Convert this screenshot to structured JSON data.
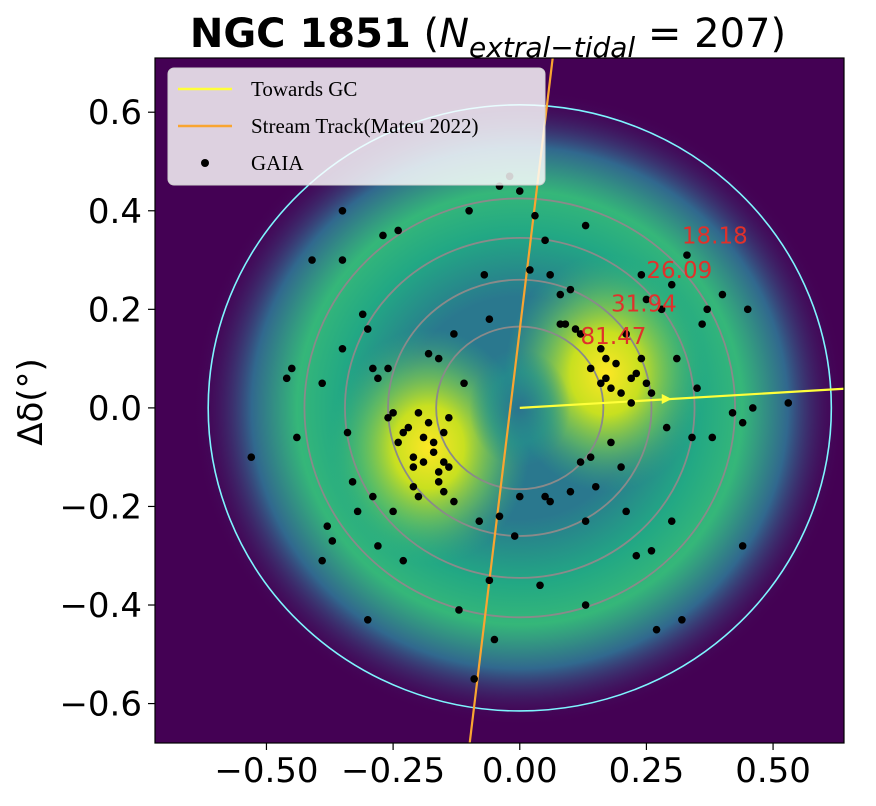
{
  "chart_data": {
    "type": "scatter",
    "title_main": "NGC 1851",
    "title_n_symbol": "N",
    "title_subscript": "extral−tidal",
    "title_equals": " = 207)",
    "title_open": " (",
    "ylabel": "Δδ(°)",
    "xlabel": "",
    "xlim": [
      -0.72,
      0.64
    ],
    "ylim": [
      -0.68,
      0.71
    ],
    "xticks": [
      -0.5,
      -0.25,
      0.0,
      0.25,
      0.5
    ],
    "xtick_labels": [
      "−0.50",
      "−0.25",
      "0.00",
      "0.25",
      "0.50"
    ],
    "yticks": [
      0.6,
      0.4,
      0.2,
      0.0,
      -0.2,
      -0.4,
      -0.6
    ],
    "ytick_labels": [
      "0.6",
      "0.4",
      "0.2",
      "0.0",
      "−0.2",
      "−0.4",
      "−0.6"
    ],
    "background": {
      "type": "density heatmap",
      "colormap": "viridis",
      "peaks": [
        [
          -0.18,
          -0.08
        ],
        [
          0.17,
          0.07
        ]
      ]
    },
    "contours": {
      "radii": [
        0.165,
        0.26,
        0.345,
        0.425
      ],
      "labels": [
        "81.47",
        "31.94",
        "26.09",
        "18.18"
      ],
      "label_positions": [
        [
          0.12,
          0.13
        ],
        [
          0.18,
          0.196
        ],
        [
          0.25,
          0.264
        ],
        [
          0.32,
          0.334
        ]
      ],
      "color": "#8a8a8a",
      "label_color": "#e0312b"
    },
    "tidal_circle": {
      "radius": 0.615,
      "color": "#7ff5ff"
    },
    "towards_gc": {
      "from": [
        0,
        0
      ],
      "to": [
        0.66,
        0.04
      ],
      "color": "#ffff3a"
    },
    "stream_track": {
      "from": [
        -0.1,
        -0.69
      ],
      "to": [
        0.065,
        0.71
      ],
      "color": "#f9a531"
    },
    "legend": {
      "position": "upper left",
      "entries": [
        {
          "label": "Towards GC",
          "marker": "line",
          "color": "#ffff3a"
        },
        {
          "label": "Stream Track(Mateu 2022)",
          "marker": "line",
          "color": "#f9a531"
        },
        {
          "label": "GAIA",
          "marker": "dot",
          "color": "#000000"
        }
      ]
    },
    "series": [
      {
        "name": "GAIA",
        "color": "#000000",
        "points": [
          [
            -0.53,
            -0.1
          ],
          [
            -0.46,
            0.06
          ],
          [
            -0.44,
            -0.06
          ],
          [
            -0.45,
            0.08
          ],
          [
            -0.41,
            0.3
          ],
          [
            -0.39,
            0.05
          ],
          [
            -0.39,
            -0.31
          ],
          [
            -0.38,
            -0.24
          ],
          [
            -0.37,
            -0.27
          ],
          [
            -0.35,
            0.3
          ],
          [
            -0.35,
            0.4
          ],
          [
            -0.35,
            0.12
          ],
          [
            -0.34,
            -0.05
          ],
          [
            -0.33,
            -0.15
          ],
          [
            -0.32,
            -0.21
          ],
          [
            -0.3,
            -0.43
          ],
          [
            -0.31,
            0.19
          ],
          [
            -0.3,
            0.16
          ],
          [
            -0.29,
            0.08
          ],
          [
            -0.29,
            -0.18
          ],
          [
            -0.28,
            0.06
          ],
          [
            -0.28,
            -0.28
          ],
          [
            -0.27,
            0.35
          ],
          [
            -0.26,
            0.08
          ],
          [
            -0.26,
            -0.02
          ],
          [
            -0.25,
            -0.01
          ],
          [
            -0.25,
            -0.21
          ],
          [
            -0.24,
            0.36
          ],
          [
            -0.24,
            -0.07
          ],
          [
            -0.23,
            -0.05
          ],
          [
            -0.23,
            -0.31
          ],
          [
            -0.22,
            -0.04
          ],
          [
            -0.21,
            -0.1
          ],
          [
            -0.21,
            -0.12
          ],
          [
            -0.21,
            -0.16
          ],
          [
            -0.2,
            -0.18
          ],
          [
            -0.2,
            -0.01
          ],
          [
            -0.19,
            -0.06
          ],
          [
            -0.19,
            -0.11
          ],
          [
            -0.18,
            0.11
          ],
          [
            -0.18,
            -0.03
          ],
          [
            -0.17,
            -0.07
          ],
          [
            -0.17,
            -0.09
          ],
          [
            -0.16,
            0.1
          ],
          [
            -0.16,
            -0.13
          ],
          [
            -0.16,
            -0.15
          ],
          [
            -0.15,
            -0.11
          ],
          [
            -0.15,
            -0.05
          ],
          [
            -0.15,
            -0.17
          ],
          [
            -0.14,
            -0.12
          ],
          [
            -0.14,
            -0.02
          ],
          [
            -0.13,
            0.15
          ],
          [
            -0.13,
            -0.19
          ],
          [
            -0.12,
            -0.41
          ],
          [
            -0.11,
            0.05
          ],
          [
            -0.1,
            0.4
          ],
          [
            -0.09,
            -0.55
          ],
          [
            -0.08,
            -0.23
          ],
          [
            -0.07,
            0.27
          ],
          [
            -0.06,
            0.18
          ],
          [
            -0.06,
            -0.35
          ],
          [
            -0.05,
            -0.47
          ],
          [
            -0.04,
            0.45
          ],
          [
            -0.04,
            -0.22
          ],
          [
            -0.02,
            0.47
          ],
          [
            -0.01,
            -0.26
          ],
          [
            0.0,
            0.44
          ],
          [
            0.0,
            -0.18
          ],
          [
            0.02,
            0.28
          ],
          [
            0.03,
            0.39
          ],
          [
            0.04,
            -0.36
          ],
          [
            0.05,
            0.34
          ],
          [
            0.05,
            -0.18
          ],
          [
            0.06,
            0.27
          ],
          [
            0.06,
            -0.19
          ],
          [
            0.08,
            0.17
          ],
          [
            0.08,
            0.23
          ],
          [
            0.09,
            0.17
          ],
          [
            0.1,
            -0.17
          ],
          [
            0.1,
            0.24
          ],
          [
            0.11,
            0.16
          ],
          [
            0.12,
            0.15
          ],
          [
            0.12,
            -0.11
          ],
          [
            0.13,
            -0.4
          ],
          [
            0.13,
            -0.23
          ],
          [
            0.13,
            0.37
          ],
          [
            0.14,
            0.08
          ],
          [
            0.14,
            -0.1
          ],
          [
            0.15,
            -0.16
          ],
          [
            0.16,
            0.05
          ],
          [
            0.16,
            0.12
          ],
          [
            0.17,
            0.1
          ],
          [
            0.17,
            0.06
          ],
          [
            0.18,
            0.04
          ],
          [
            0.18,
            -0.07
          ],
          [
            0.19,
            0.09
          ],
          [
            0.2,
            0.03
          ],
          [
            0.2,
            -0.12
          ],
          [
            0.21,
            0.15
          ],
          [
            0.21,
            -0.21
          ],
          [
            0.22,
            0.06
          ],
          [
            0.22,
            0.01
          ],
          [
            0.23,
            0.07
          ],
          [
            0.23,
            -0.3
          ],
          [
            0.24,
            0.27
          ],
          [
            0.24,
            0.1
          ],
          [
            0.25,
            0.05
          ],
          [
            0.25,
            0.22
          ],
          [
            0.26,
            0.03
          ],
          [
            0.26,
            -0.29
          ],
          [
            0.27,
            -0.45
          ],
          [
            0.28,
            0.2
          ],
          [
            0.29,
            -0.04
          ],
          [
            0.3,
            0.25
          ],
          [
            0.3,
            -0.23
          ],
          [
            0.31,
            0.1
          ],
          [
            0.32,
            -0.43
          ],
          [
            0.33,
            0.31
          ],
          [
            0.34,
            -0.06
          ],
          [
            0.35,
            0.04
          ],
          [
            0.36,
            0.17
          ],
          [
            0.37,
            0.2
          ],
          [
            0.38,
            -0.06
          ],
          [
            0.4,
            0.23
          ],
          [
            0.42,
            -0.01
          ],
          [
            0.44,
            -0.03
          ],
          [
            0.44,
            -0.28
          ],
          [
            0.45,
            0.2
          ],
          [
            0.46,
            0.0
          ],
          [
            0.53,
            0.01
          ]
        ]
      }
    ]
  }
}
